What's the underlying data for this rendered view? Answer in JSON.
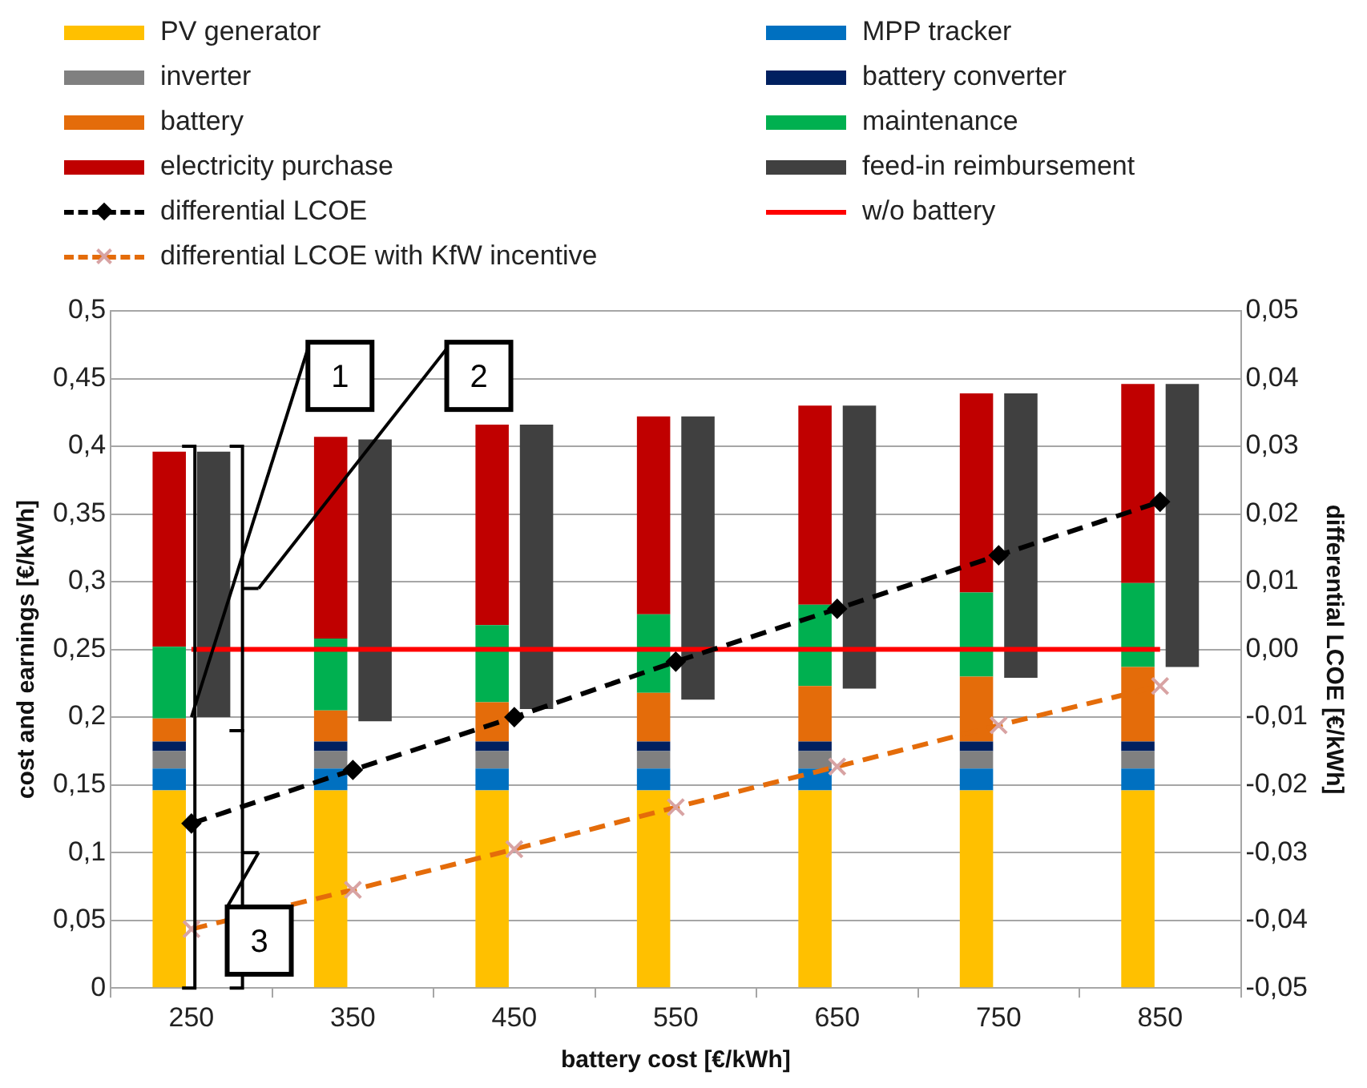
{
  "chart_data": {
    "type": "bar",
    "xlabel": "battery cost [€/kWh]",
    "ylabel": "cost and earnings [€/kWh]",
    "y2label": "differential LCOE [€/kWh]",
    "categories": [
      "250",
      "350",
      "450",
      "550",
      "650",
      "750",
      "850"
    ],
    "series": [
      {
        "name": "PV generator",
        "color": "#ffc000",
        "values": [
          0.146,
          0.146,
          0.146,
          0.146,
          0.146,
          0.146,
          0.146
        ],
        "base": [
          0,
          0,
          0,
          0,
          0,
          0,
          0
        ]
      },
      {
        "name": "MPP tracker",
        "color": "#0070c0",
        "values": [
          0.016,
          0.016,
          0.016,
          0.016,
          0.016,
          0.016,
          0.016
        ],
        "base": [
          0.146,
          0.146,
          0.146,
          0.146,
          0.146,
          0.146,
          0.146
        ]
      },
      {
        "name": "inverter",
        "color": "#808080",
        "values": [
          0.013,
          0.013,
          0.013,
          0.013,
          0.013,
          0.013,
          0.013
        ],
        "base": [
          0.162,
          0.162,
          0.162,
          0.162,
          0.162,
          0.162,
          0.162
        ]
      },
      {
        "name": "battery converter",
        "color": "#002060",
        "values": [
          0.007,
          0.007,
          0.007,
          0.007,
          0.007,
          0.007,
          0.007
        ],
        "base": [
          0.175,
          0.175,
          0.175,
          0.175,
          0.175,
          0.175,
          0.175
        ]
      },
      {
        "name": "battery",
        "color": "#e46c0a",
        "values": [
          0.017,
          0.023,
          0.029,
          0.036,
          0.041,
          0.048,
          0.055
        ],
        "base": [
          0.182,
          0.182,
          0.182,
          0.182,
          0.182,
          0.182,
          0.182
        ]
      },
      {
        "name": "maintenance",
        "color": "#00b050",
        "values": [
          0.053,
          0.053,
          0.057,
          0.058,
          0.06,
          0.062,
          0.062
        ],
        "base": [
          0.199,
          0.205,
          0.211,
          0.218,
          0.223,
          0.23,
          0.237
        ]
      },
      {
        "name": "electricity purchase",
        "color": "#c00000",
        "values": [
          0.144,
          0.149,
          0.148,
          0.146,
          0.147,
          0.147,
          0.147
        ],
        "base": [
          0.252,
          0.258,
          0.268,
          0.276,
          0.283,
          0.292,
          0.299
        ]
      },
      {
        "name": "feed-in reimbursement",
        "color": "#404040",
        "values": [
          0.196,
          0.208,
          0.21,
          0.209,
          0.209,
          0.21,
          0.209
        ],
        "base": [
          0.2,
          0.197,
          0.206,
          0.213,
          0.221,
          0.229,
          0.237
        ]
      },
      {
        "name": "differential LCOE",
        "type": "line",
        "axis": "y2",
        "color": "#000000",
        "marker": "diamond",
        "line_style": "dashed",
        "values": [
          -0.0257,
          -0.0178,
          -0.01,
          -0.0018,
          0.006,
          0.0139,
          0.0218
        ]
      },
      {
        "name": "w/o battery",
        "type": "line",
        "axis": "y2",
        "color": "#ff0000",
        "marker": "none",
        "line_style": "solid",
        "values": [
          0,
          0,
          0,
          0,
          0,
          0,
          0
        ]
      },
      {
        "name": "differential LCOE with KfW incentive",
        "type": "line",
        "axis": "y2",
        "color": "#e46c0a",
        "marker": "cross",
        "line_style": "dashed",
        "values": [
          -0.0413,
          -0.0355,
          -0.0295,
          -0.0233,
          -0.0173,
          -0.0112,
          -0.0054
        ]
      }
    ],
    "ylim": [
      0,
      0.5
    ],
    "yticks": [
      0,
      {
        "value": 0.05,
        "label": "0,05"
      },
      {
        "value": 0.1,
        "label": "0,1"
      },
      {
        "value": 0.15,
        "label": "0,15"
      },
      {
        "value": 0.2,
        "label": "0,2"
      },
      {
        "value": 0.25,
        "label": "0,25"
      },
      {
        "value": 0.3,
        "label": "0,3"
      },
      {
        "value": 0.35,
        "label": "0,35"
      },
      {
        "value": 0.4,
        "label": "0,4"
      },
      {
        "value": 0.45,
        "label": "0,45"
      },
      {
        "value": 0.5,
        "label": "0,5"
      }
    ],
    "y2lim": [
      -0.05,
      0.05
    ],
    "y2ticks": [
      {
        "value": -0.05,
        "label": "-0,05"
      },
      {
        "value": -0.04,
        "label": "-0,04"
      },
      {
        "value": -0.03,
        "label": "-0,03"
      },
      {
        "value": -0.02,
        "label": "-0,02"
      },
      {
        "value": -0.01,
        "label": "-0,01"
      },
      {
        "value": 0,
        "label": "0,00"
      },
      {
        "value": 0.01,
        "label": "0,01"
      },
      {
        "value": 0.02,
        "label": "0,02"
      },
      {
        "value": 0.03,
        "label": "0,03"
      },
      {
        "value": 0.04,
        "label": "0,04"
      },
      {
        "value": 0.05,
        "label": "0,05"
      }
    ],
    "grid": "y",
    "legend": "top",
    "annotations": [
      {
        "text": "1",
        "x": "250",
        "y": 0.2
      },
      "2",
      "3"
    ]
  }
}
